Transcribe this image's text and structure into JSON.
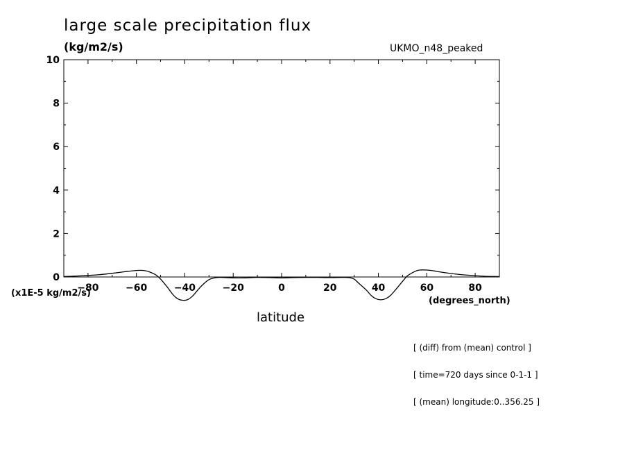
{
  "chart_data": {
    "type": "line",
    "title": "large scale precipitation flux",
    "units_label": "(kg/m2/s)",
    "model_label": "UKMO_n48_peaked",
    "scale_label": "(x1E-5 kg/m2/s)",
    "xlabel": "latitude",
    "x_units_label": "(degrees_north)",
    "xlim": [
      -90,
      90
    ],
    "ylim": [
      0,
      10
    ],
    "x_ticks": [
      -80,
      -60,
      -40,
      -20,
      0,
      20,
      40,
      60,
      80
    ],
    "y_ticks": [
      0,
      2,
      4,
      6,
      8,
      10
    ],
    "notes": [
      "[ (diff) from (mean) control ]",
      "[ time=720 days since 0-1-1 ]",
      "[ (mean) longitude:0..356.25 ]"
    ],
    "series": [
      {
        "x": [
          -90,
          -85,
          -80,
          -75,
          -70,
          -65,
          -60,
          -57,
          -55,
          -52,
          -50,
          -47,
          -45,
          -43,
          -41,
          -39,
          -37,
          -35,
          -33,
          -30,
          -27,
          -25,
          -20,
          -15,
          -10,
          -5,
          0,
          5,
          10,
          15,
          20,
          25,
          28,
          30,
          32,
          35,
          37,
          39,
          41,
          43,
          45,
          47,
          50,
          52,
          55,
          57,
          60,
          63,
          65,
          70,
          75,
          80,
          85,
          90
        ],
        "y": [
          0.02,
          0.04,
          0.07,
          0.11,
          0.17,
          0.24,
          0.3,
          0.3,
          0.25,
          0.1,
          -0.1,
          -0.5,
          -0.8,
          -1.0,
          -1.07,
          -1.05,
          -0.9,
          -0.65,
          -0.4,
          -0.12,
          -0.03,
          -0.02,
          -0.04,
          -0.04,
          -0.02,
          -0.03,
          -0.04,
          -0.03,
          -0.02,
          -0.02,
          -0.03,
          -0.02,
          -0.03,
          -0.1,
          -0.3,
          -0.6,
          -0.85,
          -1.0,
          -1.05,
          -1.0,
          -0.85,
          -0.6,
          -0.2,
          0.05,
          0.25,
          0.32,
          0.32,
          0.28,
          0.24,
          0.16,
          0.1,
          0.06,
          0.03,
          0.02
        ]
      }
    ]
  }
}
